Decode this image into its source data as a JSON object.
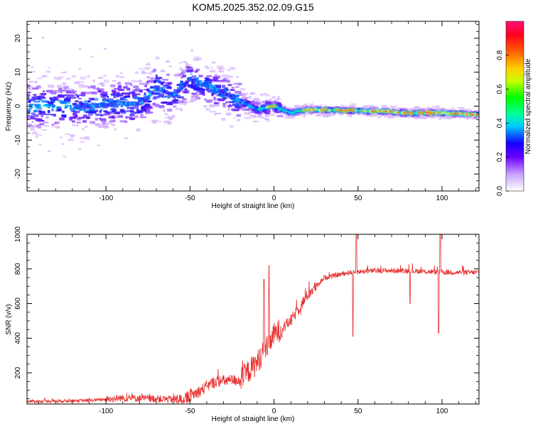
{
  "title": "KOM5.2025.352.02.09.G15",
  "chart_data": [
    {
      "type": "heatmap",
      "xlabel": "Height of straight line (km)",
      "ylabel": "Frequency (Hz)",
      "xlim": [
        -147,
        122
      ],
      "ylim": [
        -25,
        25
      ],
      "xticks": [
        -100,
        -50,
        0,
        50,
        100
      ],
      "yticks": [
        -20,
        -10,
        0,
        10,
        20
      ],
      "colorbar": {
        "label": "Normalized spectral amplitude",
        "range": [
          0,
          1
        ],
        "ticks": [
          0.0,
          0.2,
          0.4,
          0.6,
          0.8
        ],
        "tick_labels": [
          "0.0",
          "0.2",
          "0.4",
          "0.6",
          "0.8"
        ]
      },
      "ridge": [
        {
          "x": -110,
          "y": 0.0
        },
        {
          "x": -100,
          "y": 0.2
        },
        {
          "x": -90,
          "y": 1.0
        },
        {
          "x": -80,
          "y": 0.5
        },
        {
          "x": -75,
          "y": 2.5
        },
        {
          "x": -70,
          "y": 5.5
        },
        {
          "x": -60,
          "y": 3.0
        },
        {
          "x": -50,
          "y": 8.0
        },
        {
          "x": -40,
          "y": 6.0
        },
        {
          "x": -30,
          "y": 4.0
        },
        {
          "x": -20,
          "y": 1.5
        },
        {
          "x": -10,
          "y": -1.0
        },
        {
          "x": 0,
          "y": 0.0
        },
        {
          "x": 10,
          "y": -2.0
        },
        {
          "x": 20,
          "y": -1.0
        },
        {
          "x": 50,
          "y": -1.3
        },
        {
          "x": 80,
          "y": -2.0
        },
        {
          "x": 100,
          "y": -2.0
        },
        {
          "x": 122,
          "y": -2.5
        }
      ]
    },
    {
      "type": "line",
      "xlabel": "Height of straight line (km)",
      "ylabel": "SNR (v/v)",
      "xlim": [
        -147,
        122
      ],
      "ylim": [
        20,
        1000
      ],
      "xticks": [
        -100,
        -50,
        0,
        50,
        100
      ],
      "yticks": [
        200,
        400,
        600,
        800,
        1000
      ],
      "series_color": "#e8302f",
      "trend": [
        {
          "x": -147,
          "y": 35
        },
        {
          "x": -110,
          "y": 40
        },
        {
          "x": -90,
          "y": 55
        },
        {
          "x": -70,
          "y": 50
        },
        {
          "x": -55,
          "y": 45
        },
        {
          "x": -45,
          "y": 90
        },
        {
          "x": -35,
          "y": 150
        },
        {
          "x": -20,
          "y": 160
        },
        {
          "x": -10,
          "y": 260
        },
        {
          "x": -5,
          "y": 340
        },
        {
          "x": 0,
          "y": 420
        },
        {
          "x": 10,
          "y": 500
        },
        {
          "x": 20,
          "y": 650
        },
        {
          "x": 30,
          "y": 750
        },
        {
          "x": 45,
          "y": 780
        },
        {
          "x": 60,
          "y": 790
        },
        {
          "x": 80,
          "y": 790
        },
        {
          "x": 100,
          "y": 780
        },
        {
          "x": 122,
          "y": 780
        }
      ],
      "spikes": [
        {
          "x": -3,
          "y": 820
        },
        {
          "x": -6,
          "y": 740
        },
        {
          "x": 47,
          "y": 410
        },
        {
          "x": 49,
          "y": 1000
        },
        {
          "x": 81,
          "y": 600
        },
        {
          "x": 98,
          "y": 430
        },
        {
          "x": 99,
          "y": 1010
        }
      ]
    }
  ]
}
